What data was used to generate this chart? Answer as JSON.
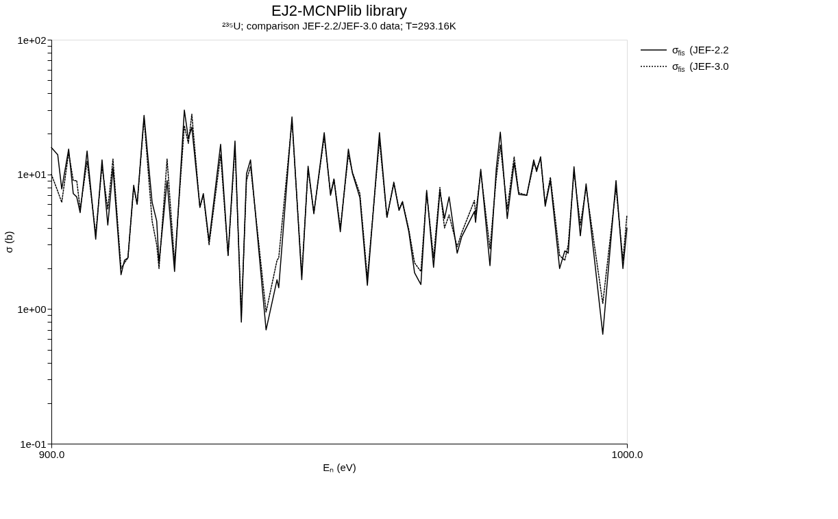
{
  "chart_data": {
    "type": "line",
    "title": "EJ2-MCNPlib library",
    "subtitle": "²³⁵U; comparison JEF-2.2/JEF-3.0 data; T=293.16K",
    "xlabel": "Eₙ (eV)",
    "ylabel": "σ (b)",
    "x": [
      900.0,
      901.1,
      901.8,
      903.0,
      903.8,
      904.4,
      905.0,
      906.2,
      907.7,
      908.8,
      909.8,
      910.7,
      912.1,
      912.7,
      913.3,
      914.3,
      914.9,
      916.1,
      917.5,
      918.3,
      918.7,
      920.1,
      921.4,
      923.1,
      923.8,
      924.4,
      925.8,
      926.4,
      927.4,
      929.4,
      930.7,
      931.9,
      933.0,
      933.9,
      934.6,
      937.3,
      939.2,
      939.5,
      941.8,
      943.5,
      944.6,
      945.6,
      947.4,
      948.5,
      949.1,
      950.2,
      951.6,
      952.3,
      953.6,
      954.9,
      957.0,
      958.3,
      959.5,
      960.4,
      961.0,
      962.1,
      963.1,
      964.2,
      965.2,
      966.4,
      967.5,
      968.3,
      969.1,
      970.5,
      971.3,
      973.5,
      973.7,
      974.6,
      976.2,
      977.3,
      978.0,
      979.2,
      980.4,
      981.2,
      982.6,
      983.8,
      984.3,
      985.0,
      985.8,
      986.7,
      988.3,
      989.2,
      989.8,
      990.8,
      991.9,
      992.9,
      995.8,
      998.1,
      999.3,
      1000.0
    ],
    "series": [
      {
        "name": "σ$_{fis}$ (JEF-2.2",
        "color": "#000000",
        "line_style": "solid",
        "values": [
          15.8,
          14.0,
          7.8,
          15.4,
          7.2,
          6.8,
          5.2,
          14.9,
          3.3,
          12.8,
          4.2,
          11.1,
          1.8,
          2.3,
          2.4,
          8.3,
          6.0,
          27.4,
          6.2,
          4.5,
          2.2,
          9.0,
          1.9,
          30.0,
          18.4,
          22.4,
          5.7,
          7.2,
          3.2,
          16.7,
          2.5,
          17.7,
          0.8,
          10.1,
          12.8,
          0.7,
          1.65,
          1.44,
          26.7,
          1.65,
          11.5,
          5.1,
          20.4,
          7.0,
          9.1,
          3.75,
          15.4,
          10.2,
          6.7,
          1.5,
          20.4,
          4.8,
          8.6,
          5.4,
          6.2,
          3.75,
          1.86,
          1.52,
          7.6,
          2.04,
          7.5,
          4.7,
          6.8,
          2.6,
          3.45,
          5.3,
          4.4,
          10.9,
          2.1,
          11.1,
          20.6,
          4.7,
          12.2,
          7.1,
          7.0,
          12.8,
          10.5,
          13.5,
          5.8,
          9.0,
          2.0,
          2.7,
          2.6,
          11.4,
          3.5,
          8.5,
          0.65,
          9.0,
          2.0,
          4.0
        ]
      },
      {
        "name": "σ$_{fis}$ (JEF-3.0",
        "color": "#000000",
        "line_style": "dotted",
        "values": [
          10.0,
          7.5,
          6.2,
          14.5,
          9.0,
          9.0,
          5.5,
          12.5,
          3.6,
          11.5,
          5.5,
          13.0,
          2.0,
          2.2,
          2.4,
          8.0,
          6.0,
          26.0,
          4.5,
          3.0,
          2.0,
          13.0,
          2.2,
          23.0,
          17.0,
          28.0,
          5.7,
          7.0,
          3.0,
          14.0,
          2.5,
          16.0,
          0.9,
          9.0,
          11.5,
          0.95,
          2.3,
          2.4,
          25.0,
          1.8,
          11.0,
          5.2,
          19.0,
          7.2,
          9.3,
          4.0,
          14.0,
          10.4,
          7.2,
          1.7,
          18.0,
          4.8,
          8.8,
          5.5,
          6.3,
          3.9,
          2.2,
          1.9,
          7.3,
          2.4,
          8.0,
          4.0,
          5.0,
          2.9,
          3.7,
          6.4,
          5.0,
          10.5,
          2.8,
          9.5,
          16.5,
          5.5,
          13.5,
          7.3,
          7.0,
          12.0,
          11.0,
          13.0,
          6.0,
          9.5,
          2.5,
          2.3,
          3.0,
          10.5,
          4.2,
          8.0,
          1.1,
          8.0,
          2.3,
          5.0
        ]
      }
    ],
    "log": true,
    "xlim": [
      900.0,
      1000.0
    ],
    "ylim": [
      0.1,
      100
    ],
    "xticks": [
      {
        "value": 900,
        "label": "900.0"
      },
      {
        "value": 1000,
        "label": "1000.0"
      }
    ],
    "yticks": [
      {
        "value": 0.1,
        "label": "1e-01"
      },
      {
        "value": 0.2,
        "label": null
      },
      {
        "value": 0.3,
        "label": null
      },
      {
        "value": 0.4,
        "label": null
      },
      {
        "value": 0.5,
        "label": null
      },
      {
        "value": 0.6,
        "label": null
      },
      {
        "value": 0.7,
        "label": null
      },
      {
        "value": 0.8,
        "label": null
      },
      {
        "value": 0.9,
        "label": null
      },
      {
        "value": 1,
        "label": "1e+00"
      },
      {
        "value": 2,
        "label": null
      },
      {
        "value": 3,
        "label": null
      },
      {
        "value": 4,
        "label": null
      },
      {
        "value": 5,
        "label": null
      },
      {
        "value": 6,
        "label": null
      },
      {
        "value": 7,
        "label": null
      },
      {
        "value": 8,
        "label": null
      },
      {
        "value": 9,
        "label": null
      },
      {
        "value": 10,
        "label": "1e+01"
      },
      {
        "value": 20,
        "label": null
      },
      {
        "value": 30,
        "label": null
      },
      {
        "value": 40,
        "label": null
      },
      {
        "value": 50,
        "label": null
      },
      {
        "value": 60,
        "label": null
      },
      {
        "value": 70,
        "label": null
      },
      {
        "value": 80,
        "label": null
      },
      {
        "value": 90,
        "label": null
      },
      {
        "value": 100,
        "label": "1e+02"
      }
    ],
    "grid": false,
    "legend": "top right"
  }
}
